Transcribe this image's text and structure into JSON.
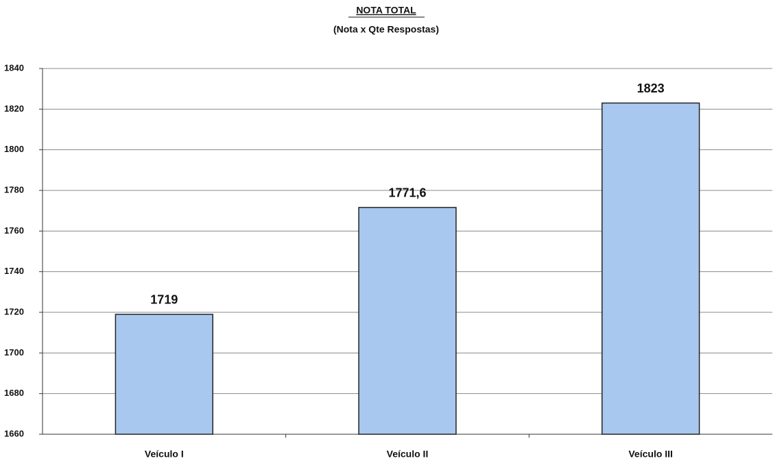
{
  "chart_data": {
    "type": "bar",
    "title": "NOTA TOTAL",
    "subtitle": "(Nota x Qte Respostas)",
    "categories": [
      "Veículo I",
      "Veículo II",
      "Veículo III"
    ],
    "values": [
      1719,
      1771.6,
      1823
    ],
    "value_labels": [
      "1719",
      "1771,6",
      "1823"
    ],
    "color": "#a9c8ef",
    "ylim": [
      1660,
      1840
    ],
    "yticks": [
      1660,
      1680,
      1700,
      1720,
      1740,
      1760,
      1780,
      1800,
      1820,
      1840
    ],
    "grid": true
  }
}
